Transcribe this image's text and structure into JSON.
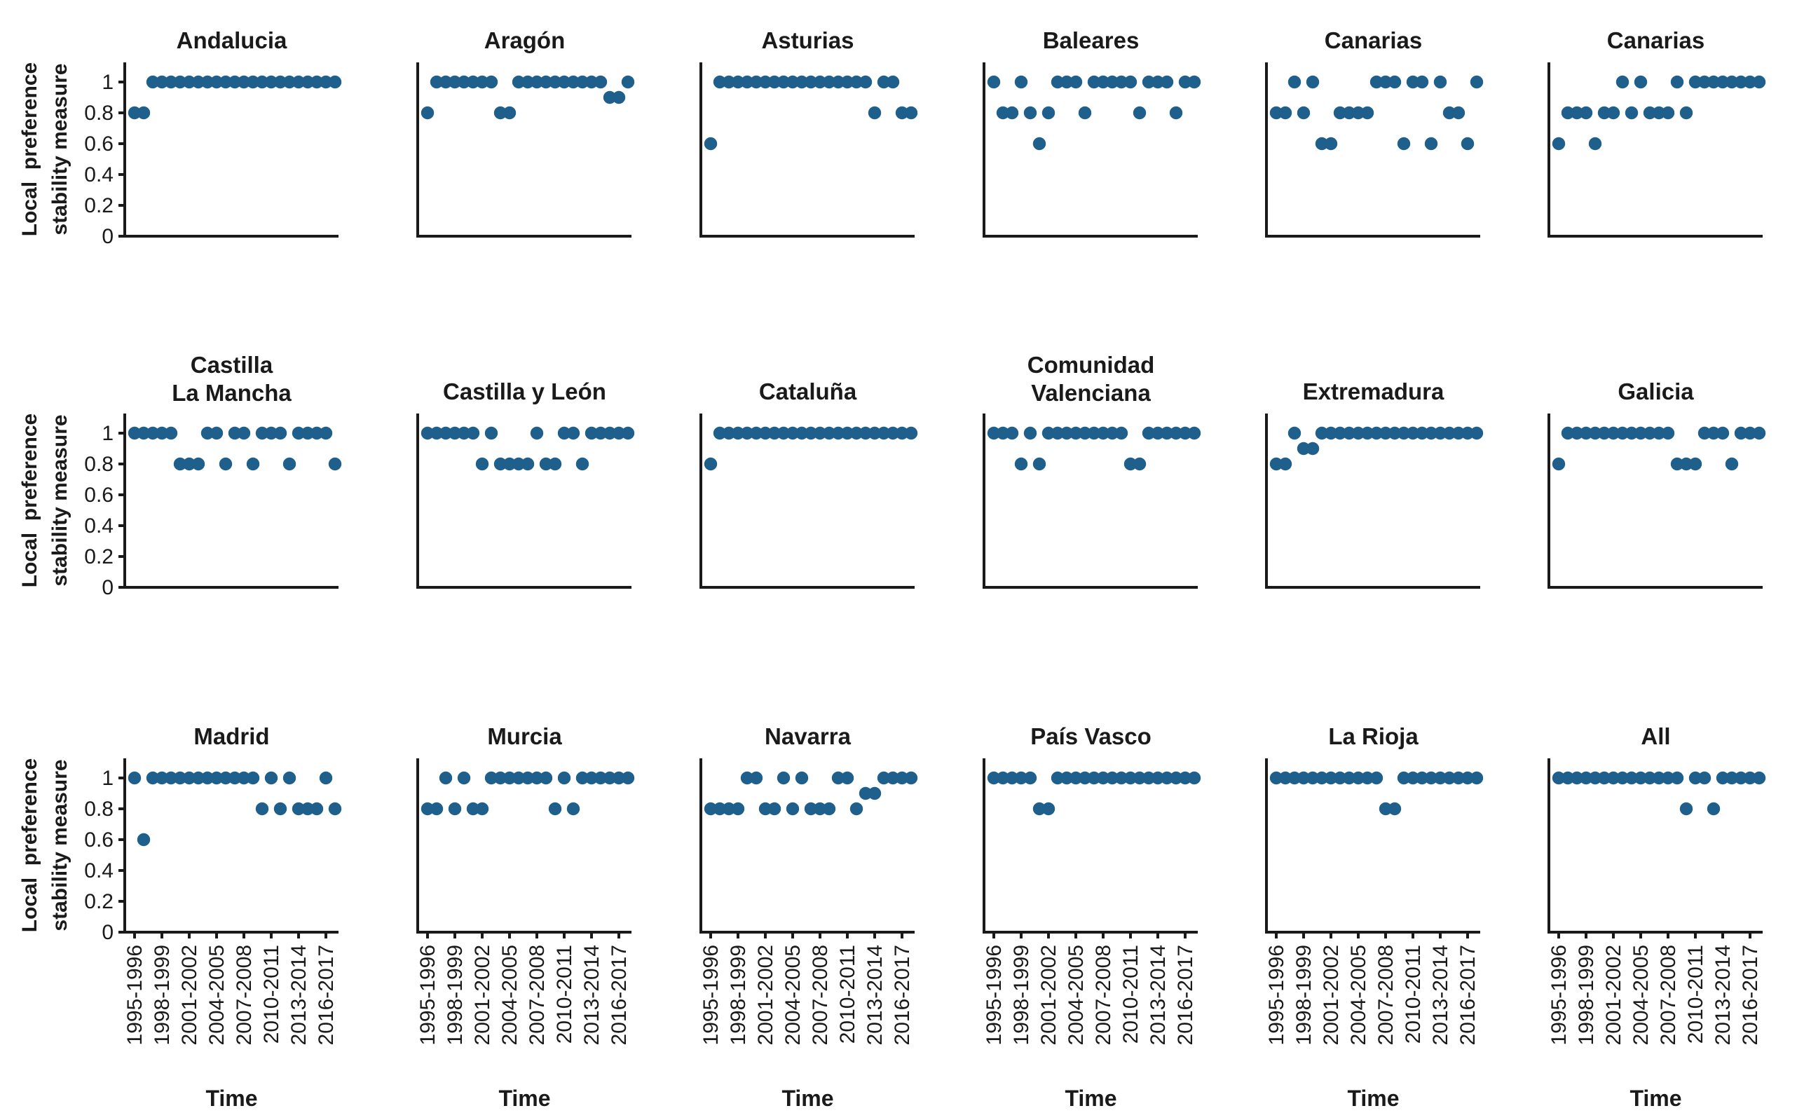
{
  "figure": {
    "background": "#ffffff",
    "axis_color": "#1a1a1a",
    "text_color": "#1a1a1a",
    "point_color": "#1e5f8c",
    "x_label": "Time",
    "y_label_line1": "Local  preference",
    "y_label_line2": "stability measure"
  },
  "chart_data": {
    "type": "scatter",
    "grid": {
      "rows": 3,
      "cols": 6
    },
    "title": "",
    "xlabel": "Time",
    "ylabel_lines": [
      "Local  preference",
      "stability measure"
    ],
    "ylim": [
      0,
      1.13
    ],
    "y_ticks": [
      0,
      0.2,
      0.4,
      0.6,
      0.8,
      1
    ],
    "y_tick_labels": [
      "0",
      "0.2",
      "0.4",
      "0.6",
      "0.8",
      "1"
    ],
    "x_categories": [
      "1995-1996",
      "1996-1997",
      "1997-1998",
      "1998-1999",
      "1999-2000",
      "2000-2001",
      "2001-2002",
      "2002-2003",
      "2003-2004",
      "2004-2005",
      "2005-2006",
      "2006-2007",
      "2007-2008",
      "2008-2009",
      "2009-2010",
      "2010-2011",
      "2011-2012",
      "2012-2013",
      "2013-2014",
      "2014-2015",
      "2015-2016",
      "2016-2017",
      "2017-2018"
    ],
    "x_tick_indices": [
      0,
      3,
      6,
      9,
      12,
      15,
      18,
      21
    ],
    "x_tick_labels": [
      "1995-1996",
      "1998-1999",
      "2001-2002",
      "2004-2005",
      "2007-2008",
      "2010-2011",
      "2013-2014",
      "2016-2017"
    ],
    "legend": "none",
    "grid_lines": false,
    "subplots": [
      {
        "title": "Andalucia",
        "title_lines": [
          "Andalucia"
        ],
        "values": [
          0.8,
          0.8,
          1,
          1,
          1,
          1,
          1,
          1,
          1,
          1,
          1,
          1,
          1,
          1,
          1,
          1,
          1,
          1,
          1,
          1,
          1,
          1,
          1
        ]
      },
      {
        "title": "Aragón",
        "title_lines": [
          "Aragón"
        ],
        "values": [
          0.8,
          1,
          1,
          1,
          1,
          1,
          1,
          1,
          0.8,
          0.8,
          1,
          1,
          1,
          1,
          1,
          1,
          1,
          1,
          1,
          1,
          0.9,
          0.9,
          1
        ]
      },
      {
        "title": "Asturias",
        "title_lines": [
          "Asturias"
        ],
        "values": [
          0.6,
          1,
          1,
          1,
          1,
          1,
          1,
          1,
          1,
          1,
          1,
          1,
          1,
          1,
          1,
          1,
          1,
          1,
          0.8,
          1,
          1,
          0.8,
          0.8
        ]
      },
      {
        "title": "Baleares",
        "title_lines": [
          "Baleares"
        ],
        "values": [
          1,
          0.8,
          0.8,
          1,
          0.8,
          0.6,
          0.8,
          1,
          1,
          1,
          0.8,
          1,
          1,
          1,
          1,
          1,
          0.8,
          1,
          1,
          1,
          0.8,
          1,
          1
        ]
      },
      {
        "title": "Canarias",
        "title_lines": [
          "Canarias"
        ],
        "values": [
          0.8,
          0.8,
          1,
          0.8,
          1,
          0.6,
          0.6,
          0.8,
          0.8,
          0.8,
          0.8,
          1,
          1,
          1,
          0.6,
          1,
          1,
          0.6,
          1,
          0.8,
          0.8,
          0.6,
          1
        ]
      },
      {
        "title": "Canarias",
        "title_lines": [
          "Canarias"
        ],
        "values": [
          0.6,
          0.8,
          0.8,
          0.8,
          0.6,
          0.8,
          0.8,
          1,
          0.8,
          1,
          0.8,
          0.8,
          0.8,
          1,
          0.8,
          1,
          1,
          1,
          1,
          1,
          1,
          1,
          1
        ]
      },
      {
        "title": "Castilla La Mancha",
        "title_lines": [
          "Castilla",
          "La Mancha"
        ],
        "values": [
          1,
          1,
          1,
          1,
          1,
          0.8,
          0.8,
          0.8,
          1,
          1,
          0.8,
          1,
          1,
          0.8,
          1,
          1,
          1,
          0.8,
          1,
          1,
          1,
          1,
          0.8
        ]
      },
      {
        "title": "Castilla y León",
        "title_lines": [
          "Castilla y León"
        ],
        "values": [
          1,
          1,
          1,
          1,
          1,
          1,
          0.8,
          1,
          0.8,
          0.8,
          0.8,
          0.8,
          1,
          0.8,
          0.8,
          1,
          1,
          0.8,
          1,
          1,
          1,
          1,
          1
        ]
      },
      {
        "title": "Cataluña",
        "title_lines": [
          "Cataluña"
        ],
        "values": [
          0.8,
          1,
          1,
          1,
          1,
          1,
          1,
          1,
          1,
          1,
          1,
          1,
          1,
          1,
          1,
          1,
          1,
          1,
          1,
          1,
          1,
          1,
          1
        ]
      },
      {
        "title": "Comunidad Valenciana",
        "title_lines": [
          "Comunidad",
          "Valenciana"
        ],
        "values": [
          1,
          1,
          1,
          0.8,
          1,
          0.8,
          1,
          1,
          1,
          1,
          1,
          1,
          1,
          1,
          1,
          0.8,
          0.8,
          1,
          1,
          1,
          1,
          1,
          1
        ]
      },
      {
        "title": "Extremadura",
        "title_lines": [
          "Extremadura"
        ],
        "values": [
          0.8,
          0.8,
          1,
          0.9,
          0.9,
          1,
          1,
          1,
          1,
          1,
          1,
          1,
          1,
          1,
          1,
          1,
          1,
          1,
          1,
          1,
          1,
          1,
          1
        ]
      },
      {
        "title": "Galicia",
        "title_lines": [
          "Galicia"
        ],
        "values": [
          0.8,
          1,
          1,
          1,
          1,
          1,
          1,
          1,
          1,
          1,
          1,
          1,
          1,
          0.8,
          0.8,
          0.8,
          1,
          1,
          1,
          0.8,
          1,
          1,
          1
        ]
      },
      {
        "title": "Madrid",
        "title_lines": [
          "Madrid"
        ],
        "values": [
          1,
          0.6,
          1,
          1,
          1,
          1,
          1,
          1,
          1,
          1,
          1,
          1,
          1,
          1,
          0.8,
          1,
          0.8,
          1,
          0.8,
          0.8,
          0.8,
          1,
          0.8
        ]
      },
      {
        "title": "Murcia",
        "title_lines": [
          "Murcia"
        ],
        "values": [
          0.8,
          0.8,
          1,
          0.8,
          1,
          0.8,
          0.8,
          1,
          1,
          1,
          1,
          1,
          1,
          1,
          0.8,
          1,
          0.8,
          1,
          1,
          1,
          1,
          1,
          1
        ]
      },
      {
        "title": "Navarra",
        "title_lines": [
          "Navarra"
        ],
        "values": [
          0.8,
          0.8,
          0.8,
          0.8,
          1,
          1,
          0.8,
          0.8,
          1,
          0.8,
          1,
          0.8,
          0.8,
          0.8,
          1,
          1,
          0.8,
          0.9,
          0.9,
          1,
          1,
          1,
          1
        ]
      },
      {
        "title": "País Vasco",
        "title_lines": [
          "País Vasco"
        ],
        "values": [
          1,
          1,
          1,
          1,
          1,
          0.8,
          0.8,
          1,
          1,
          1,
          1,
          1,
          1,
          1,
          1,
          1,
          1,
          1,
          1,
          1,
          1,
          1,
          1
        ]
      },
      {
        "title": "La Rioja",
        "title_lines": [
          "La Rioja"
        ],
        "values": [
          1,
          1,
          1,
          1,
          1,
          1,
          1,
          1,
          1,
          1,
          1,
          1,
          0.8,
          0.8,
          1,
          1,
          1,
          1,
          1,
          1,
          1,
          1,
          1
        ]
      },
      {
        "title": "All",
        "title_lines": [
          "All"
        ],
        "values": [
          1,
          1,
          1,
          1,
          1,
          1,
          1,
          1,
          1,
          1,
          1,
          1,
          1,
          1,
          0.8,
          1,
          1,
          0.8,
          1,
          1,
          1,
          1,
          1
        ]
      }
    ]
  }
}
